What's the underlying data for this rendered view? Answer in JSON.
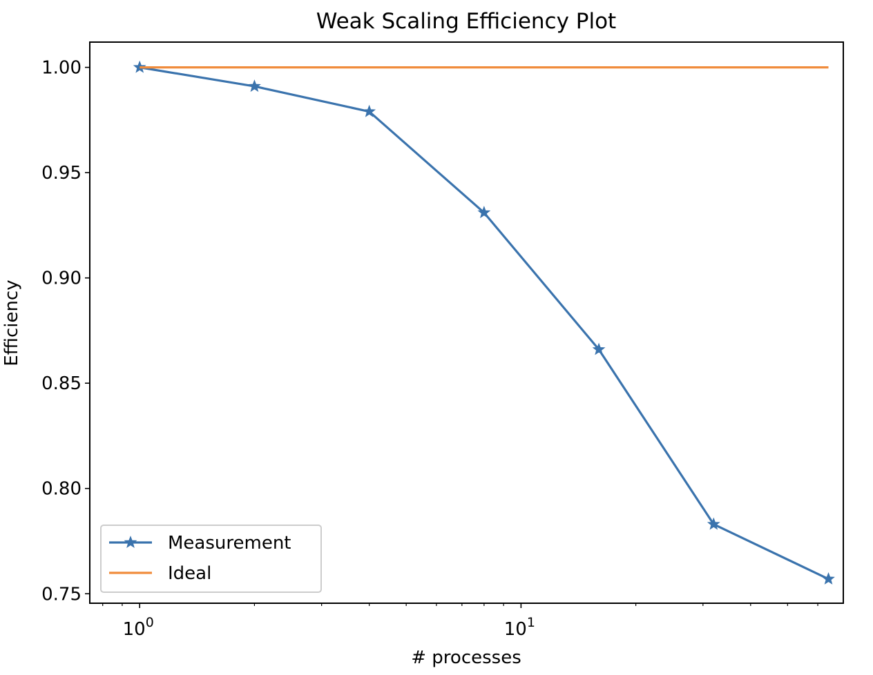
{
  "chart_data": {
    "type": "line",
    "title": "Weak Scaling Efficiency Plot",
    "xlabel": "# processes",
    "ylabel": "Efficiency",
    "xscale": "log",
    "x": [
      1,
      2,
      4,
      8,
      16,
      32,
      64
    ],
    "xlim": [
      0.74,
      70
    ],
    "ylim": [
      0.7455,
      1.012
    ],
    "xticks": [
      {
        "value": 1,
        "base": "10",
        "exp": "0"
      },
      {
        "value": 10,
        "base": "10",
        "exp": "1"
      }
    ],
    "yticks": [
      {
        "value": 0.75,
        "label": "0.75"
      },
      {
        "value": 0.8,
        "label": "0.80"
      },
      {
        "value": 0.85,
        "label": "0.85"
      },
      {
        "value": 0.9,
        "label": "0.90"
      },
      {
        "value": 0.95,
        "label": "0.95"
      },
      {
        "value": 1.0,
        "label": "1.00"
      }
    ],
    "series": [
      {
        "name": "Measurement",
        "color": "#3a73ad",
        "marker": "star",
        "values": [
          1.0,
          0.991,
          0.979,
          0.931,
          0.866,
          0.783,
          0.757
        ]
      },
      {
        "name": "Ideal",
        "color": "#f08c3c",
        "marker": "none",
        "values": [
          1,
          1,
          1,
          1,
          1,
          1,
          1
        ]
      }
    ],
    "legend": {
      "position": "lower-left"
    },
    "grid": false
  }
}
